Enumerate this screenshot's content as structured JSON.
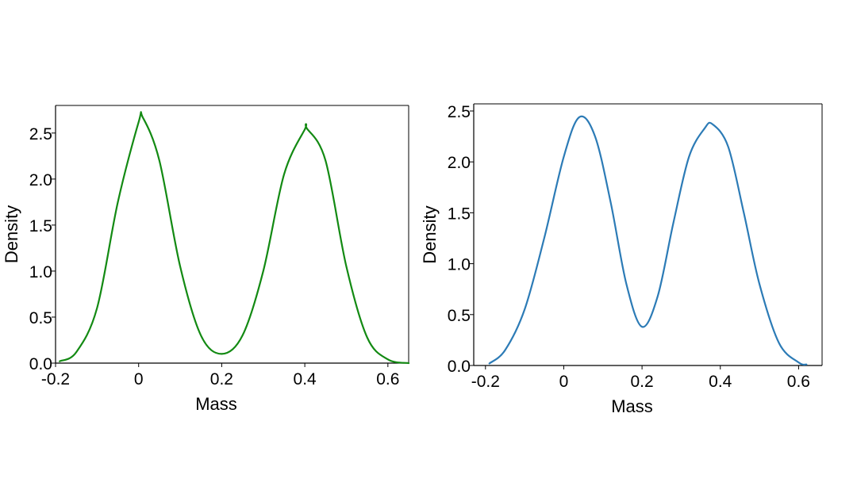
{
  "chart_data": [
    {
      "type": "line",
      "xlabel": "Mass",
      "ylabel": "Density",
      "xlim": [
        -0.2,
        0.65
      ],
      "ylim": [
        0.0,
        2.8
      ],
      "xticks": [
        -0.2,
        0,
        0.2,
        0.4,
        0.6
      ],
      "xtick_labels": [
        "-0.2",
        "0",
        "0.2",
        "0.4",
        "0.6"
      ],
      "yticks": [
        0.0,
        0.5,
        1.0,
        1.5,
        2.0,
        2.5
      ],
      "ytick_labels": [
        "0.0",
        "0.5",
        "1.0",
        "1.5",
        "2.0",
        "2.5"
      ],
      "grid": false,
      "series": [
        {
          "color": "#138a13",
          "x": [
            -0.19,
            -0.15,
            -0.1,
            -0.05,
            0.0,
            0.01,
            0.05,
            0.1,
            0.15,
            0.2,
            0.25,
            0.3,
            0.35,
            0.4,
            0.405,
            0.45,
            0.5,
            0.55,
            0.6,
            0.65
          ],
          "y": [
            0.02,
            0.12,
            0.6,
            1.75,
            2.62,
            2.67,
            2.2,
            1.05,
            0.3,
            0.1,
            0.3,
            1.0,
            2.05,
            2.54,
            2.55,
            2.2,
            1.05,
            0.28,
            0.04,
            0.0
          ]
        }
      ]
    },
    {
      "type": "line",
      "xlabel": "Mass",
      "ylabel": "Density",
      "xlim": [
        -0.23,
        0.66
      ],
      "ylim": [
        0.0,
        2.57
      ],
      "xticks": [
        -0.2,
        0,
        0.2,
        0.4,
        0.6
      ],
      "xtick_labels": [
        "-0.2",
        "0",
        "0.2",
        "0.4",
        "0.6"
      ],
      "yticks": [
        0.0,
        0.5,
        1.0,
        1.5,
        2.0,
        2.5
      ],
      "ytick_labels": [
        "0.0",
        "0.5",
        "1.0",
        "1.5",
        "2.0",
        "2.5"
      ],
      "grid": false,
      "series": [
        {
          "color": "#2c7bb6",
          "x": [
            -0.19,
            -0.15,
            -0.1,
            -0.05,
            0.0,
            0.04,
            0.08,
            0.12,
            0.16,
            0.2,
            0.24,
            0.28,
            0.32,
            0.36,
            0.38,
            0.42,
            0.46,
            0.5,
            0.55,
            0.6,
            0.62
          ],
          "y": [
            0.02,
            0.15,
            0.55,
            1.25,
            2.05,
            2.44,
            2.25,
            1.6,
            0.8,
            0.38,
            0.68,
            1.4,
            2.05,
            2.33,
            2.37,
            2.15,
            1.5,
            0.8,
            0.22,
            0.03,
            0.01
          ]
        }
      ]
    }
  ]
}
